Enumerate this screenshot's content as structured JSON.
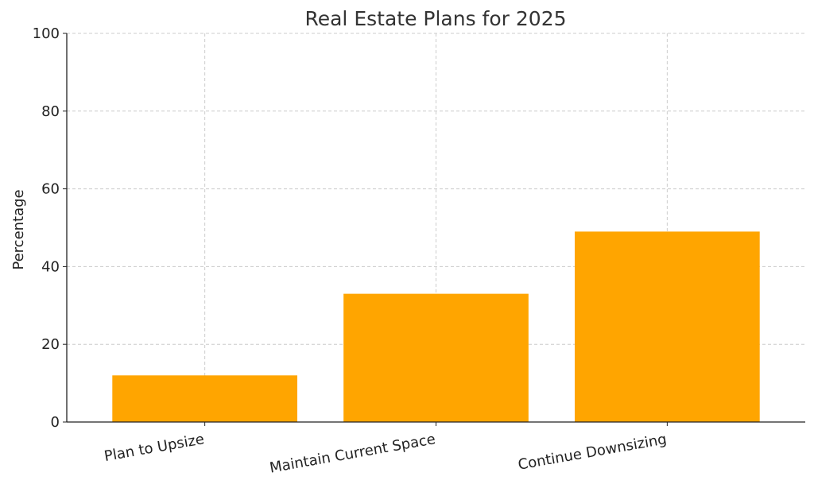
{
  "chart_data": {
    "type": "bar",
    "title": "Real Estate Plans for 2025",
    "xlabel": "",
    "ylabel": "Percentage",
    "categories": [
      "Plan to Upsize",
      "Maintain Current Space",
      "Continue Downsizing"
    ],
    "values": [
      12,
      33,
      49
    ],
    "ylim": [
      0,
      100
    ],
    "yticks": [
      0,
      20,
      40,
      60,
      80,
      100
    ],
    "bar_color": "#FFA500",
    "grid": true,
    "legend": "none"
  }
}
